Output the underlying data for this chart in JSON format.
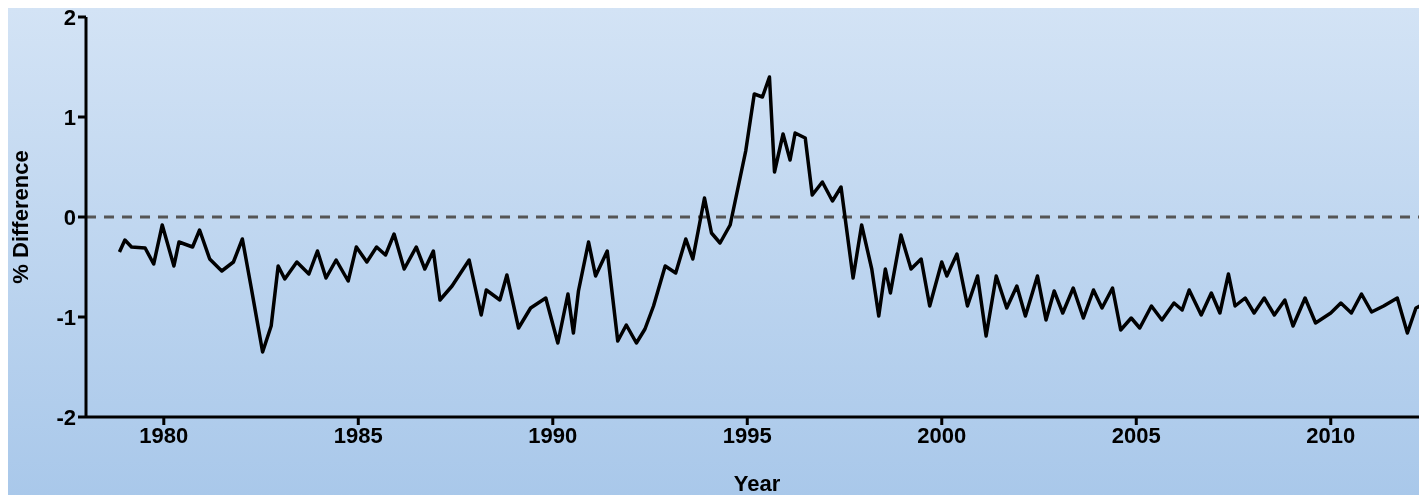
{
  "chart_data": {
    "type": "line",
    "xlabel": "Year",
    "ylabel": "% Difference",
    "x": [
      1978.86,
      1979.0,
      1979.17,
      1979.52,
      1979.74,
      1979.96,
      1980.26,
      1980.39,
      1980.74,
      1980.92,
      1981.18,
      1981.49,
      1981.79,
      1982.02,
      1982.24,
      1982.54,
      1982.76,
      1982.94,
      1983.11,
      1983.42,
      1983.73,
      1983.95,
      1984.17,
      1984.43,
      1984.74,
      1984.95,
      1985.22,
      1985.47,
      1985.7,
      1985.92,
      1986.18,
      1986.49,
      1986.71,
      1986.93,
      1987.1,
      1987.41,
      1987.85,
      1988.16,
      1988.29,
      1988.64,
      1988.82,
      1989.12,
      1989.43,
      1989.82,
      1990.13,
      1990.39,
      1990.53,
      1990.66,
      1990.92,
      1991.1,
      1991.4,
      1991.67,
      1991.89,
      1992.15,
      1992.37,
      1992.59,
      1992.89,
      1993.16,
      1993.42,
      1993.6,
      1993.9,
      1994.08,
      1994.3,
      1994.56,
      1994.96,
      1995.18,
      1995.39,
      1995.57,
      1995.7,
      1995.92,
      1996.1,
      1996.23,
      1996.49,
      1996.67,
      1996.93,
      1997.19,
      1997.41,
      1997.72,
      1997.94,
      1998.2,
      1998.38,
      1998.55,
      1998.68,
      1998.95,
      1999.21,
      1999.47,
      1999.69,
      2000.0,
      2000.13,
      2000.39,
      2000.66,
      2000.92,
      2001.14,
      2001.4,
      2001.67,
      2001.93,
      2002.15,
      2002.46,
      2002.68,
      2002.89,
      2003.11,
      2003.38,
      2003.64,
      2003.9,
      2004.12,
      2004.39,
      2004.6,
      2004.87,
      2005.09,
      2005.39,
      2005.66,
      2005.97,
      2006.18,
      2006.36,
      2006.67,
      2006.93,
      2007.15,
      2007.37,
      2007.54,
      2007.8,
      2008.03,
      2008.29,
      2008.55,
      2008.82,
      2009.03,
      2009.34,
      2009.61,
      2010.0,
      2010.26,
      2010.53,
      2010.79,
      2011.05,
      2011.36,
      2011.71,
      2011.97,
      2012.19,
      2012.35
    ],
    "series": [
      {
        "color": "#000000",
        "values": [
          -0.35,
          -0.23,
          -0.3,
          -0.31,
          -0.47,
          -0.08,
          -0.49,
          -0.25,
          -0.3,
          -0.13,
          -0.42,
          -0.54,
          -0.45,
          -0.22,
          -0.69,
          -1.35,
          -1.09,
          -0.49,
          -0.62,
          -0.45,
          -0.57,
          -0.34,
          -0.61,
          -0.43,
          -0.64,
          -0.3,
          -0.45,
          -0.3,
          -0.38,
          -0.17,
          -0.52,
          -0.3,
          -0.52,
          -0.34,
          -0.83,
          -0.69,
          -0.43,
          -0.98,
          -0.73,
          -0.83,
          -0.58,
          -1.11,
          -0.91,
          -0.81,
          -1.26,
          -0.77,
          -1.16,
          -0.74,
          -0.25,
          -0.59,
          -0.34,
          -1.24,
          -1.08,
          -1.26,
          -1.12,
          -0.89,
          -0.49,
          -0.56,
          -0.22,
          -0.42,
          0.19,
          -0.16,
          -0.26,
          -0.08,
          0.66,
          1.23,
          1.2,
          1.4,
          0.45,
          0.83,
          0.57,
          0.84,
          0.79,
          0.22,
          0.35,
          0.16,
          0.3,
          -0.61,
          -0.08,
          -0.52,
          -0.99,
          -0.52,
          -0.76,
          -0.18,
          -0.52,
          -0.42,
          -0.89,
          -0.45,
          -0.59,
          -0.37,
          -0.89,
          -0.59,
          -1.19,
          -0.59,
          -0.91,
          -0.69,
          -0.99,
          -0.59,
          -1.03,
          -0.74,
          -0.96,
          -0.71,
          -1.01,
          -0.73,
          -0.91,
          -0.71,
          -1.13,
          -1.01,
          -1.11,
          -0.89,
          -1.03,
          -0.86,
          -0.93,
          -0.73,
          -0.98,
          -0.76,
          -0.96,
          -0.57,
          -0.89,
          -0.81,
          -0.96,
          -0.81,
          -0.98,
          -0.83,
          -1.09,
          -0.81,
          -1.06,
          -0.96,
          -0.86,
          -0.96,
          -0.77,
          -0.95,
          -0.89,
          -0.81,
          -1.16,
          -0.91,
          -0.88
        ]
      }
    ],
    "xlim": [
      1978,
      2012.5
    ],
    "xticks": [
      1980,
      1985,
      1990,
      1995,
      2000,
      2005,
      2010
    ],
    "ylim": [
      -2,
      2
    ],
    "yticks": [
      -2,
      -1,
      0,
      1,
      2
    ],
    "ref_lines": [
      {
        "axis": "y",
        "value": 0,
        "color": "#555555",
        "line_style": "dashed"
      }
    ],
    "grid": false,
    "legend": false,
    "marker": "none",
    "line_style": "solid"
  }
}
